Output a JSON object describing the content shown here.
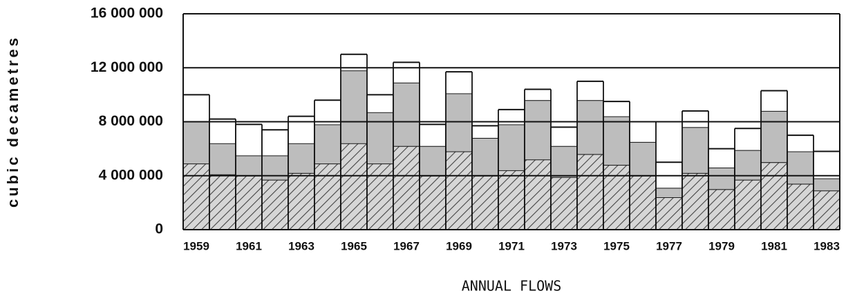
{
  "chart_data": {
    "type": "stacked_bar",
    "y_label": "cubic decametres",
    "x_label": "ANNUAL FLOWS",
    "categories": [
      "1959",
      null,
      "1961",
      null,
      "1963",
      null,
      "1965",
      null,
      "1967",
      null,
      "1969",
      null,
      "1971",
      null,
      "1973",
      null,
      "1975",
      null,
      "1977",
      null,
      "1979",
      null,
      "1981",
      null,
      "1983"
    ],
    "series": [
      {
        "color": "#555555",
        "pattern": "hatch",
        "values": [
          4900000,
          4100000,
          4000000,
          3700000,
          4200000,
          4900000,
          6400000,
          4900000,
          6200000,
          4000000,
          5800000,
          4000000,
          4400000,
          5200000,
          3900000,
          5600000,
          4800000,
          4000000,
          2400000,
          4200000,
          3000000,
          3700000,
          5000000,
          3400000,
          2900000
        ]
      },
      {
        "color": "#bdbdbd",
        "values": [
          3100000,
          2300000,
          1500000,
          1800000,
          2200000,
          2900000,
          5400000,
          3800000,
          4700000,
          2200000,
          4300000,
          2800000,
          3400000,
          4400000,
          2300000,
          4000000,
          3600000,
          2500000,
          700000,
          3400000,
          1600000,
          2200000,
          3800000,
          2400000,
          900000
        ]
      },
      {
        "color": "#ffffff",
        "values": [
          2000000,
          1800000,
          2300000,
          1900000,
          2000000,
          1800000,
          1200000,
          1300000,
          1500000,
          1600000,
          1600000,
          900000,
          1100000,
          800000,
          1400000,
          1400000,
          1100000,
          1500000,
          1900000,
          1200000,
          1400000,
          1600000,
          1500000,
          1200000,
          2000000
        ]
      }
    ],
    "ylim": [
      0,
      16000000
    ],
    "yticks": [
      0,
      {
        "value": 4000000,
        "label": "4 000 000"
      },
      {
        "value": 8000000,
        "label": "8 000 000"
      },
      {
        "value": 12000000,
        "label": "12 000 000"
      },
      {
        "value": 16000000,
        "label": "16 000 000"
      }
    ],
    "grid": true
  }
}
